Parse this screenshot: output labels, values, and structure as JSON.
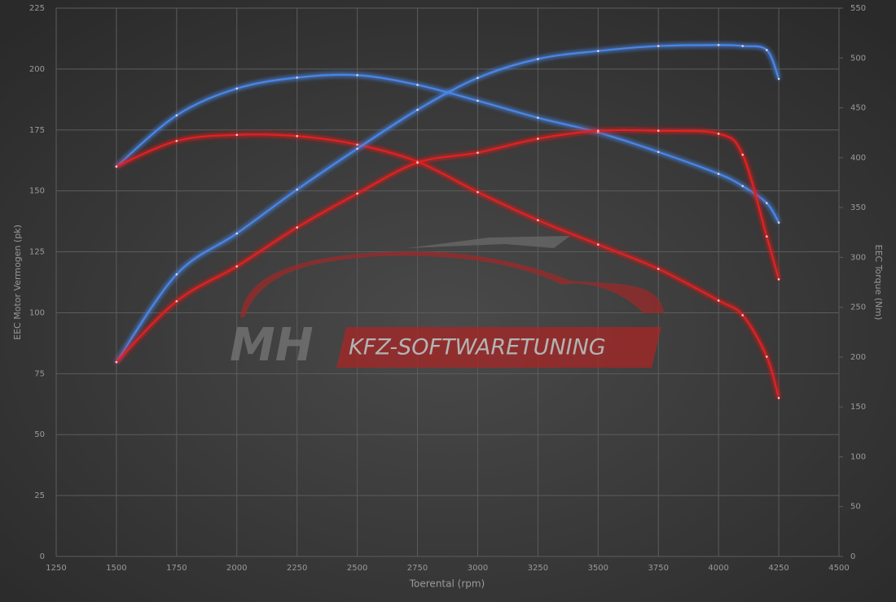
{
  "chart_data": {
    "type": "line",
    "x_label": "Toerental (rpm)",
    "y_label": "EEC Motor Vermogen (pk)",
    "y2_label": "EEC Torque (Nm)",
    "watermark": [
      "MH",
      "KFZ-SOFTWARETUNING"
    ],
    "x": [
      1500,
      1750,
      2000,
      2250,
      2500,
      2750,
      3000,
      3250,
      3500,
      3750,
      4000,
      4100,
      4200,
      4250
    ],
    "series": [
      {
        "color": "#4a86e8",
        "values": [
          160,
          181,
          192,
          196.5,
          197.5,
          193.5,
          187,
          180,
          174,
          166,
          157,
          152,
          145,
          137
        ]
      },
      {
        "color": "#e02020",
        "values": [
          160,
          170.5,
          173,
          172.5,
          169,
          162,
          149.5,
          138,
          128,
          118,
          105,
          99,
          82,
          65
        ]
      },
      {
        "color": "#4a86e8",
        "axis": "y2",
        "values": [
          195,
          283,
          324,
          368,
          409,
          448,
          480,
          499,
          507,
          512,
          513,
          512,
          508,
          479
        ]
      },
      {
        "color": "#e02020",
        "axis": "y2",
        "values": [
          195,
          256,
          291,
          330,
          364,
          395,
          405,
          419,
          427,
          427,
          424,
          403,
          321,
          278
        ]
      }
    ],
    "xlim": [
      1250,
      4500
    ],
    "xticks": [
      1250,
      1500,
      1750,
      2000,
      2250,
      2500,
      2750,
      3000,
      3250,
      3500,
      3750,
      4000,
      4250,
      4500
    ],
    "ylim": [
      0,
      225
    ],
    "yticks": [
      0,
      25,
      50,
      75,
      100,
      125,
      150,
      175,
      200,
      225
    ],
    "y2lim": [
      0,
      550
    ],
    "y2ticks": [
      0,
      50,
      100,
      150,
      200,
      250,
      300,
      350,
      400,
      450,
      500,
      550
    ],
    "grid": true
  }
}
